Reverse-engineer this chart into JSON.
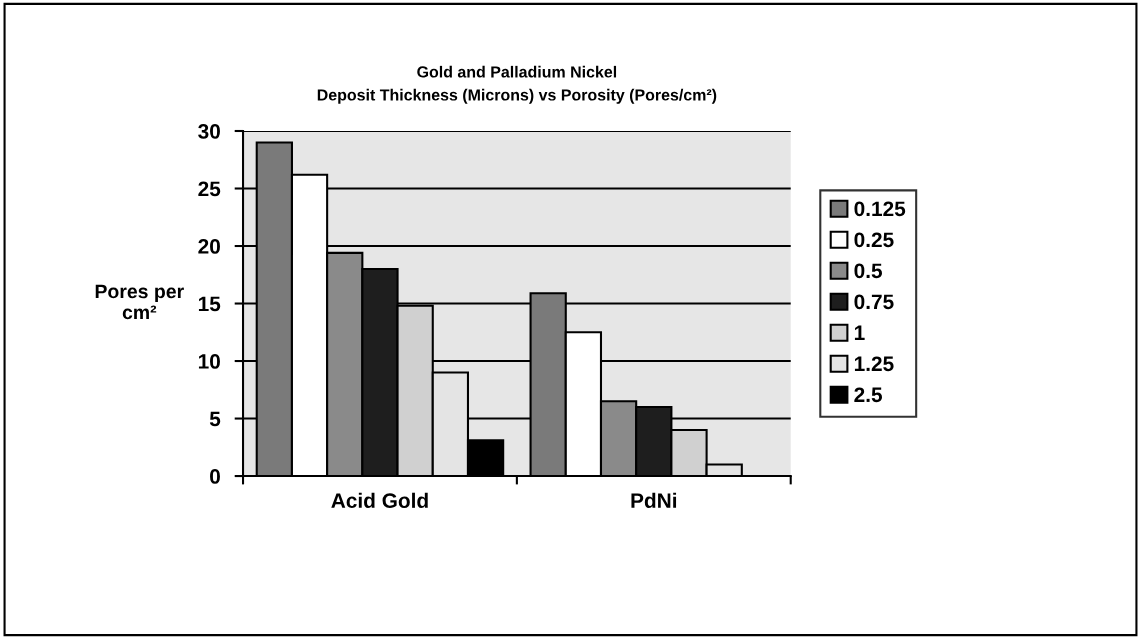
{
  "chart_data": {
    "type": "bar",
    "title": "Gold and Palladium Nickel\nDeposit Thickness (Microns) vs Porosity (Pores/cm²)",
    "ylabel": "Pores per\ncm²",
    "categories": [
      "Acid Gold",
      "PdNi"
    ],
    "series": [
      {
        "name": "0.125",
        "color": "#7a7a7a",
        "values": [
          29.0,
          15.9
        ]
      },
      {
        "name": "0.25",
        "color": "#ffffff",
        "values": [
          26.2,
          12.5
        ]
      },
      {
        "name": "0.5",
        "color": "#8a8a8a",
        "values": [
          19.4,
          6.5
        ]
      },
      {
        "name": "0.75",
        "color": "#1e1e1e",
        "values": [
          18.0,
          6.0
        ]
      },
      {
        "name": "1",
        "color": "#d0d0d0",
        "values": [
          14.8,
          4.0
        ]
      },
      {
        "name": "1.25",
        "color": "#e4e4e4",
        "values": [
          9.0,
          1.0
        ]
      },
      {
        "name": "2.5",
        "color": "#000000",
        "values": [
          3.1,
          0
        ]
      }
    ],
    "ylim": [
      0,
      30
    ],
    "yticks": [
      0,
      5,
      10,
      15,
      20,
      25,
      30
    ],
    "grid": "y",
    "legend": "right"
  }
}
